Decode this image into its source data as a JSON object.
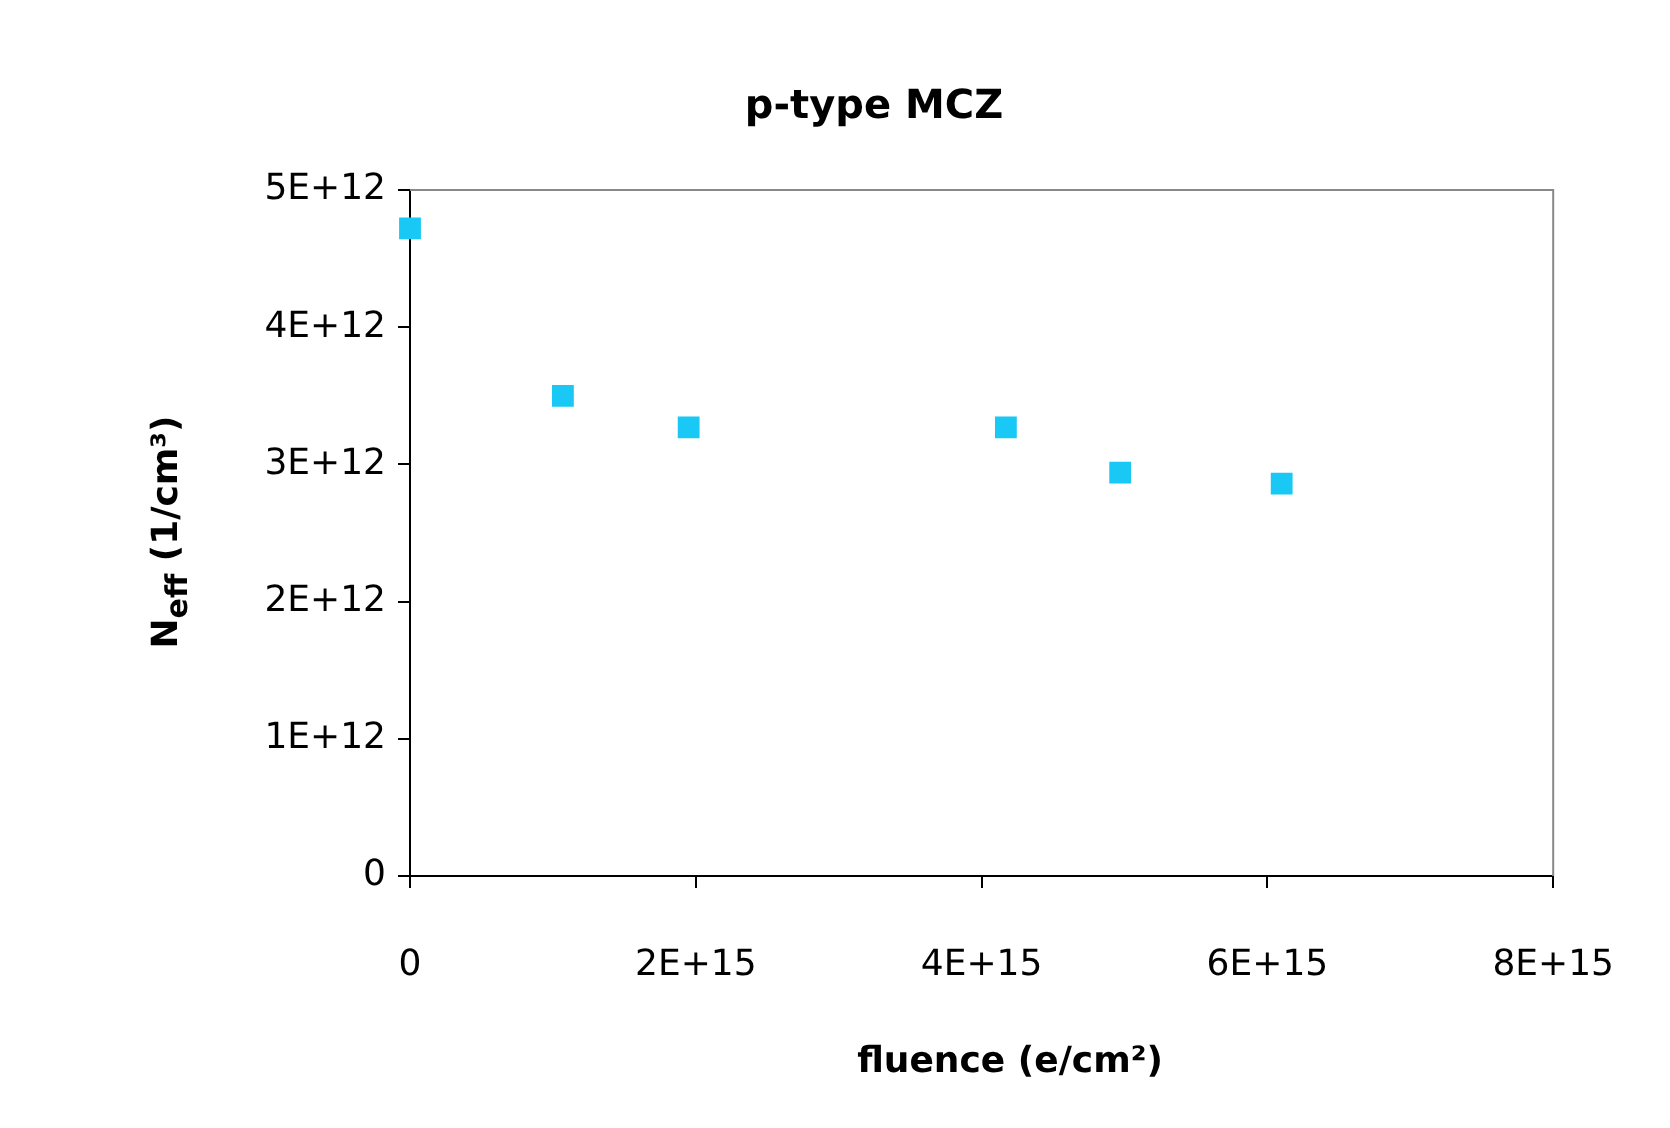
{
  "chart_data": {
    "type": "scatter",
    "title": "p-type MCZ",
    "xlabel": "fluence (e/cm²)",
    "ylabel": "N$_{eff}$ (1/cm³)",
    "x": [
      0,
      1070000000000000.0,
      1950000000000000.0,
      4170000000000000.0,
      4970000000000000.0,
      6100000000000000.0
    ],
    "series": [
      {
        "color": "#19c8f5",
        "values": [
          4720000000000.0,
          3500000000000.0,
          3270000000000.0,
          3270000000000.0,
          2940000000000.0,
          2860000000000.0
        ]
      }
    ],
    "xlim": [
      0,
      8000000000000000.0
    ],
    "xticks": [
      0,
      {
        "value": 2000000000000000.0,
        "label": "2E+15"
      },
      {
        "value": 4000000000000000.0,
        "label": "4E+15"
      },
      {
        "value": 6000000000000000.0,
        "label": "6E+15"
      },
      {
        "value": 8000000000000000.0,
        "label": "8E+15"
      }
    ],
    "ylim": [
      0,
      5000000000000.0
    ],
    "yticks": [
      0,
      {
        "value": 1000000000000.0,
        "label": "1E+12"
      },
      {
        "value": 2000000000000.0,
        "label": "2E+12"
      },
      {
        "value": 3000000000000.0,
        "label": "3E+12"
      },
      {
        "value": 4000000000000.0,
        "label": "4E+12"
      },
      {
        "value": 5000000000000.0,
        "label": "5E+12"
      }
    ],
    "grid": false,
    "legend": false,
    "marker": "square"
  }
}
